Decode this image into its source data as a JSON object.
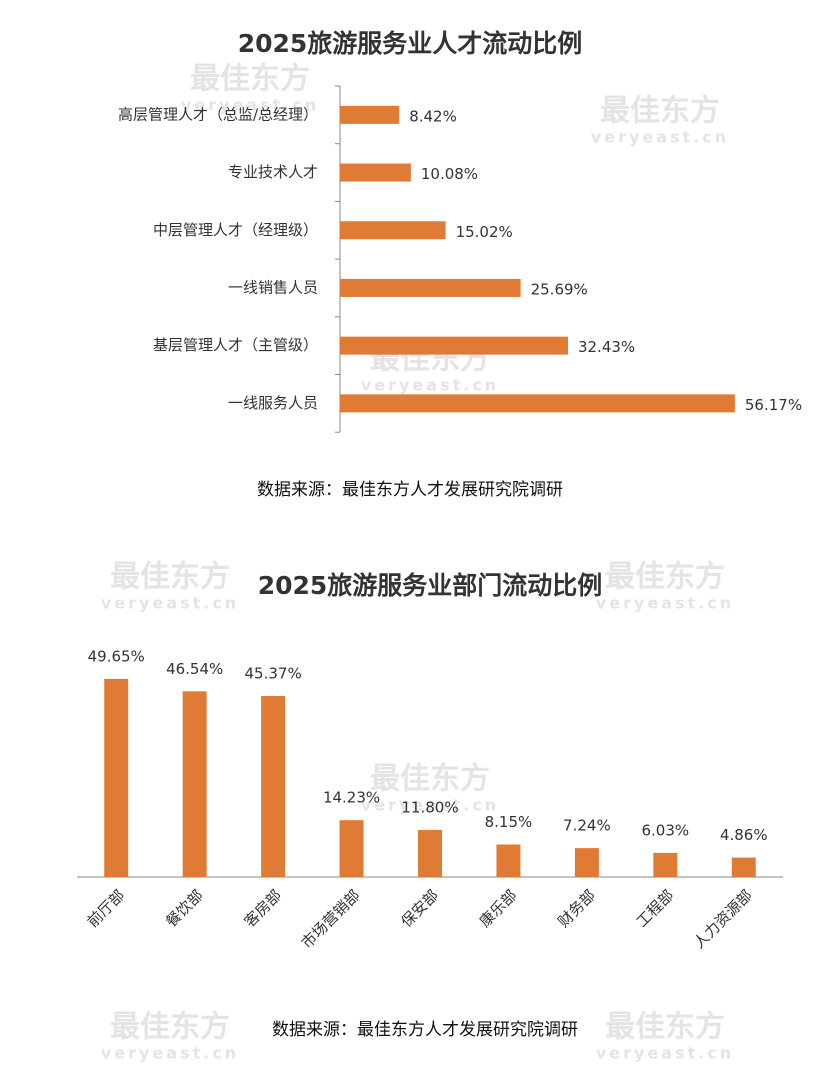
{
  "watermark": {
    "text": "最佳东方",
    "url": "veryeast.cn"
  },
  "chart_data": [
    {
      "type": "hbar",
      "title": "2025旅游服务业人才流动比例",
      "categories": [
        "高层管理人才（总监/总经理）",
        "专业技术人才",
        "中层管理人才（经理级）",
        "一线销售人员",
        "基层管理人才（主管级）",
        "一线服务人员"
      ],
      "values": [
        8.42,
        10.08,
        15.02,
        25.69,
        32.43,
        56.17
      ],
      "value_labels": [
        "8.42%",
        "10.08%",
        "15.02%",
        "25.69%",
        "32.43%",
        "56.17%"
      ],
      "color": "#e07b36",
      "source": "数据来源：最佳东方人才发展研究院调研"
    },
    {
      "type": "bar",
      "title": "2025旅游服务业部门流动比例",
      "categories": [
        "前厅部",
        "餐饮部",
        "客房部",
        "市场营销部",
        "保安部",
        "康乐部",
        "财务部",
        "工程部",
        "人力资源部"
      ],
      "values": [
        49.65,
        46.54,
        45.37,
        14.23,
        11.8,
        8.15,
        7.24,
        6.03,
        4.86
      ],
      "value_labels": [
        "49.65%",
        "46.54%",
        "45.37%",
        "14.23%",
        "11.80%",
        "8.15%",
        "7.24%",
        "6.03%",
        "4.86%"
      ],
      "color": "#e07b36",
      "source": "数据来源：最佳东方人才发展研究院调研"
    }
  ]
}
